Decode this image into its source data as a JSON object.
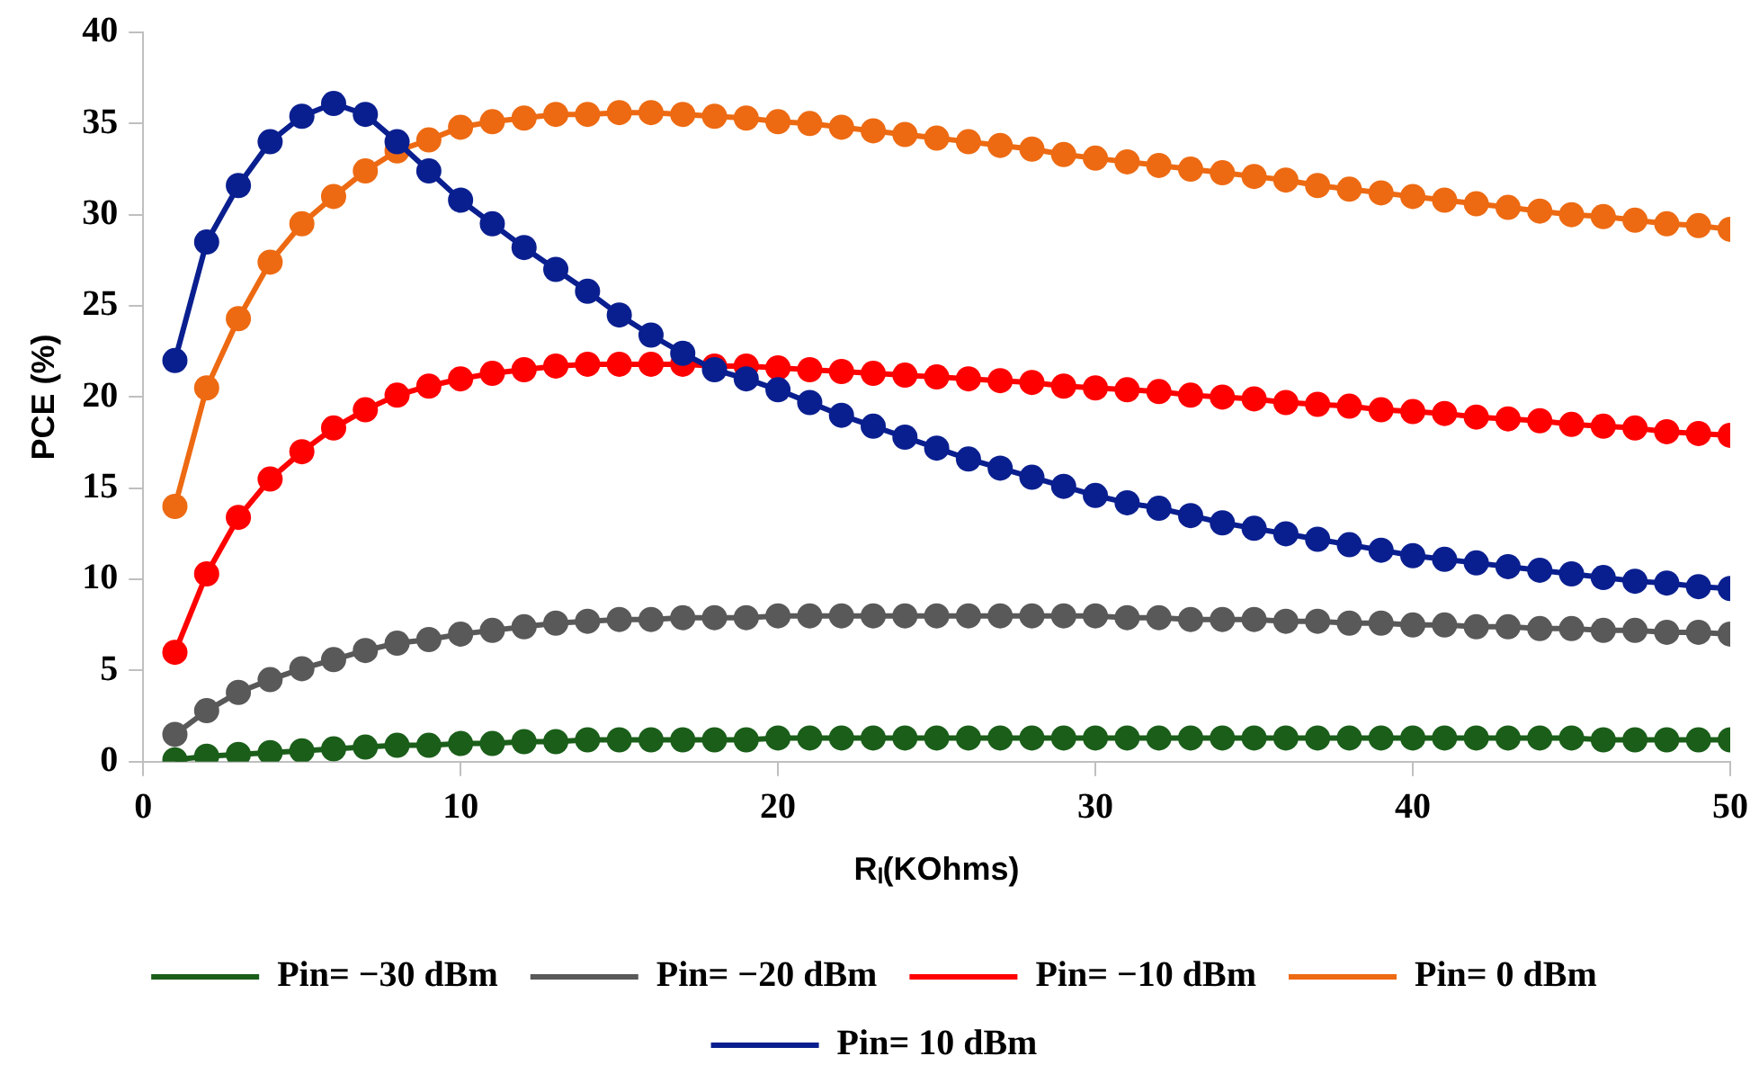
{
  "chart_data": {
    "type": "line",
    "xlabel": "Rₗ(KOhms)",
    "ylabel": "PCE (%)",
    "x": [
      1,
      2,
      3,
      4,
      5,
      6,
      7,
      8,
      9,
      10,
      11,
      12,
      13,
      14,
      15,
      16,
      17,
      18,
      19,
      20,
      21,
      22,
      23,
      24,
      25,
      26,
      27,
      28,
      29,
      30,
      31,
      32,
      33,
      34,
      35,
      36,
      37,
      38,
      39,
      40,
      41,
      42,
      43,
      44,
      45,
      46,
      47,
      48,
      49,
      50
    ],
    "xlim": [
      0,
      50
    ],
    "xticks": [
      0,
      10,
      20,
      30,
      40,
      50
    ],
    "ylim": [
      0,
      40
    ],
    "yticks": [
      0,
      5,
      10,
      15,
      20,
      25,
      30,
      35,
      40
    ],
    "grid": false,
    "legend": "bottom",
    "marker": "circle",
    "line_style": "solid",
    "series": [
      {
        "name": "Pin= −30 dBm",
        "color": "#1a5e1a",
        "values": [
          0.1,
          0.3,
          0.4,
          0.5,
          0.6,
          0.7,
          0.8,
          0.9,
          0.9,
          1.0,
          1.0,
          1.1,
          1.1,
          1.2,
          1.2,
          1.2,
          1.2,
          1.2,
          1.2,
          1.3,
          1.3,
          1.3,
          1.3,
          1.3,
          1.3,
          1.3,
          1.3,
          1.3,
          1.3,
          1.3,
          1.3,
          1.3,
          1.3,
          1.3,
          1.3,
          1.3,
          1.3,
          1.3,
          1.3,
          1.3,
          1.3,
          1.3,
          1.3,
          1.3,
          1.3,
          1.2,
          1.2,
          1.2,
          1.2,
          1.2
        ]
      },
      {
        "name": "Pin= −20 dBm",
        "color": "#595959",
        "values": [
          1.5,
          2.8,
          3.8,
          4.5,
          5.1,
          5.6,
          6.1,
          6.5,
          6.7,
          7.0,
          7.2,
          7.4,
          7.6,
          7.7,
          7.8,
          7.8,
          7.9,
          7.9,
          7.9,
          8.0,
          8.0,
          8.0,
          8.0,
          8.0,
          8.0,
          8.0,
          8.0,
          8.0,
          8.0,
          8.0,
          7.9,
          7.9,
          7.8,
          7.8,
          7.8,
          7.7,
          7.7,
          7.6,
          7.6,
          7.5,
          7.5,
          7.4,
          7.4,
          7.3,
          7.3,
          7.2,
          7.2,
          7.1,
          7.1,
          7.0
        ]
      },
      {
        "name": "Pin= −10 dBm",
        "color": "#ff0000",
        "values": [
          6,
          10.3,
          13.4,
          15.5,
          17,
          18.3,
          19.3,
          20.1,
          20.6,
          21,
          21.3,
          21.5,
          21.7,
          21.8,
          21.8,
          21.8,
          21.8,
          21.7,
          21.7,
          21.6,
          21.5,
          21.4,
          21.3,
          21.2,
          21.1,
          21,
          20.9,
          20.8,
          20.6,
          20.5,
          20.4,
          20.3,
          20.1,
          20,
          19.9,
          19.7,
          19.6,
          19.5,
          19.3,
          19.2,
          19.1,
          18.9,
          18.8,
          18.7,
          18.5,
          18.4,
          18.3,
          18.1,
          18,
          17.9
        ]
      },
      {
        "name": "Pin= 0 dBm",
        "color": "#ed6a12",
        "values": [
          14,
          20.5,
          24.3,
          27.4,
          29.5,
          31,
          32.4,
          33.5,
          34.1,
          34.8,
          35.1,
          35.3,
          35.5,
          35.5,
          35.6,
          35.6,
          35.5,
          35.4,
          35.3,
          35.1,
          35,
          34.8,
          34.6,
          34.4,
          34.2,
          34,
          33.8,
          33.6,
          33.3,
          33.1,
          32.9,
          32.7,
          32.5,
          32.3,
          32.1,
          31.9,
          31.6,
          31.4,
          31.2,
          31,
          30.8,
          30.6,
          30.4,
          30.2,
          30,
          29.9,
          29.7,
          29.5,
          29.4,
          29.2
        ]
      },
      {
        "name": "Pin= 10 dBm",
        "color": "#0a1f8f",
        "values": [
          22,
          28.5,
          31.6,
          34,
          35.4,
          36.1,
          35.5,
          34,
          32.4,
          30.8,
          29.5,
          28.2,
          27,
          25.8,
          24.5,
          23.4,
          22.4,
          21.5,
          21,
          20.4,
          19.7,
          19,
          18.4,
          17.8,
          17.2,
          16.6,
          16.1,
          15.6,
          15.1,
          14.6,
          14.2,
          13.9,
          13.5,
          13.1,
          12.8,
          12.5,
          12.2,
          11.9,
          11.6,
          11.3,
          11.1,
          10.9,
          10.7,
          10.5,
          10.3,
          10.1,
          9.9,
          9.8,
          9.6,
          9.5
        ]
      }
    ]
  }
}
